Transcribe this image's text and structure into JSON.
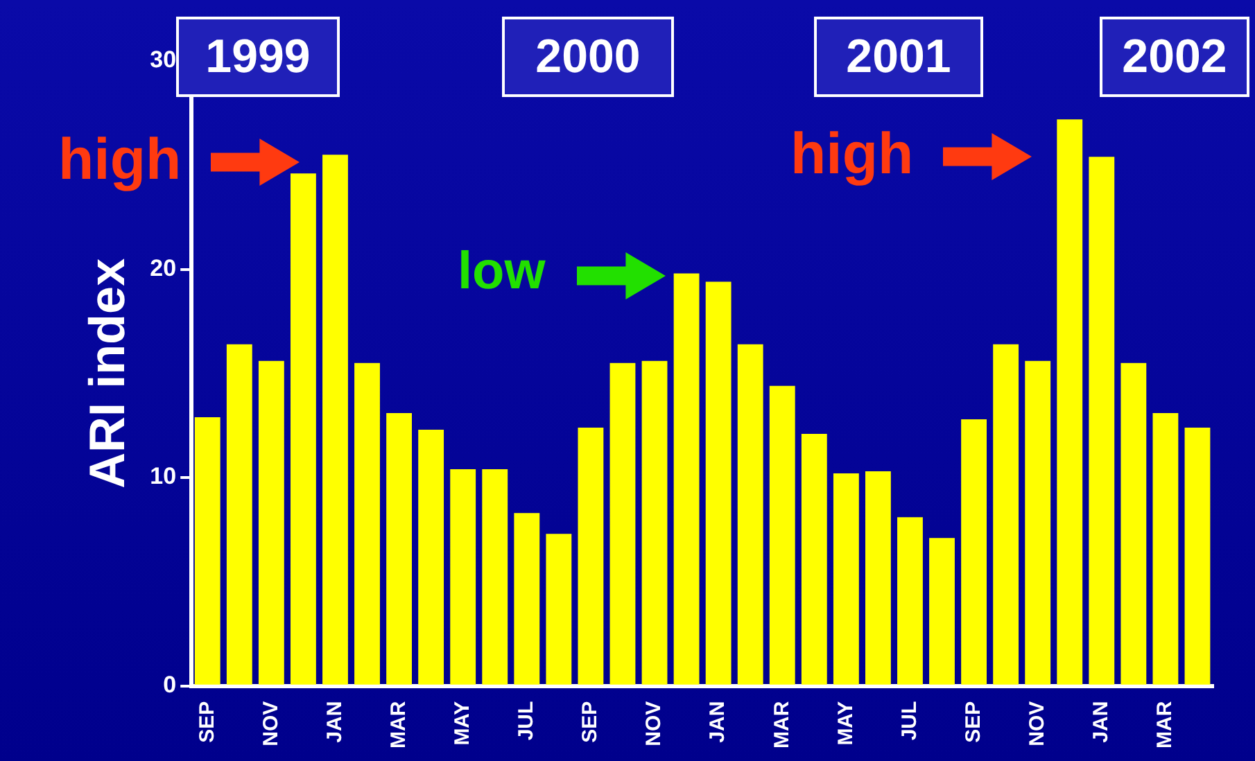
{
  "chart_data": {
    "type": "bar",
    "ylabel": "ARI index",
    "categories": [
      "SEP",
      null,
      "NOV",
      null,
      "JAN",
      null,
      "MAR",
      null,
      "MAY",
      null,
      "JUL",
      null,
      "SEP",
      null,
      "NOV",
      null,
      "JAN",
      null,
      "MAR",
      null,
      "MAY",
      null,
      "JUL",
      null,
      "SEP",
      null,
      "NOV",
      null,
      "JAN",
      null,
      "MAR",
      null
    ],
    "values": [
      12.9,
      16.4,
      15.6,
      24.6,
      25.5,
      15.5,
      13.1,
      12.3,
      10.4,
      10.4,
      8.3,
      7.3,
      12.4,
      15.5,
      15.6,
      19.8,
      19.4,
      16.4,
      14.4,
      12.1,
      10.2,
      10.3,
      8.1,
      7.1,
      12.8,
      16.4,
      15.6,
      27.2,
      25.4,
      15.5,
      13.1,
      12.4
    ],
    "color": "#ffff00",
    "ylim": [
      0,
      30
    ],
    "yticks": [
      0,
      10,
      20,
      30
    ],
    "grid": false,
    "legend": false,
    "annotations": [
      "1999",
      "2000",
      "2001",
      "2002",
      "high",
      "low",
      "high"
    ]
  }
}
